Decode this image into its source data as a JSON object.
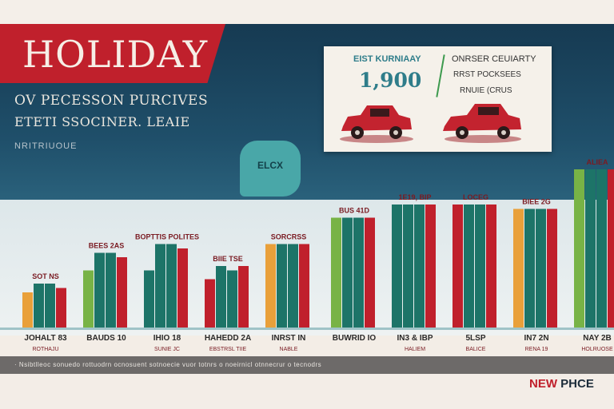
{
  "header": {
    "title": "HOLIDAY",
    "subtitle_line1": "OV PECESSON PURCIVES",
    "subtitle_line2": "ETETI SSOCINER. LEAIE",
    "subtitle_line3": "NRITRIUOUE"
  },
  "info_card": {
    "heading_left": "EIST KURNIAAY",
    "big_value": "1,900",
    "heading_right": "ONRSER CEUIARTY",
    "line_right_1": "RRST POCKSEES",
    "line_right_2": "RNUIE (CRUS",
    "car_icon": "car-icon"
  },
  "bubble": {
    "label": "ELCX"
  },
  "footer": {
    "fine_print": "· Nsibtlleoc sonuedo rottuodrn ocnosuent sotnoecie vuor totnrs o noeirnicl otnnecrur o tecnodrs",
    "brand": "NEW",
    "brand_suffix": "PHCE"
  },
  "colors": {
    "navy": "#163a52",
    "red": "#c0202c",
    "teal": "#1d7468",
    "green": "#78b346",
    "orange": "#e9a03a"
  },
  "chart_data": {
    "type": "bar",
    "categories": [
      "JOHALT 83",
      "BAUDS 10",
      "IHIO 18",
      "HAHEDD 2A",
      "INRST IN",
      "BUWRID IO",
      "IN3 & IBP",
      "5LSP",
      "IN7 2N",
      "NAY 2B"
    ],
    "category_sublabels": [
      "ROTHAJU",
      "",
      "SUNIE JC",
      "EBSTRSL TIIE",
      "NABLE",
      "",
      "HALIEM",
      "BALICE",
      "RENA 19",
      "HOLRUOSE"
    ],
    "value_labels": [
      "SOT NS",
      "BEES 2AS",
      "BOPTTIS POLITES",
      "BIIE TSE",
      "SORCRSS",
      "BUS 41D",
      "1E19, BIP",
      "LOCEG",
      "BIEE 2G",
      "ALIEA"
    ],
    "series": [
      {
        "values": [
          8,
          13,
          13,
          11,
          19,
          25,
          28,
          28,
          27,
          36
        ]
      },
      {
        "values": [
          10,
          17,
          19,
          14,
          19,
          25,
          28,
          28,
          27,
          36
        ]
      },
      {
        "values": [
          10,
          17,
          19,
          13,
          19,
          25,
          28,
          28,
          27,
          36
        ]
      },
      {
        "values": [
          9,
          16,
          18,
          14,
          19,
          25,
          28,
          28,
          27,
          36
        ]
      }
    ],
    "ylim": [
      0,
      40
    ]
  }
}
